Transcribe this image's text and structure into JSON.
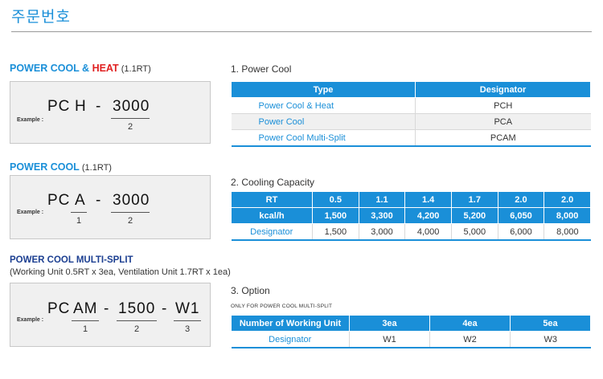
{
  "page_title": "주문번호",
  "sections": {
    "heat": {
      "title_prefix": "POWER COOL & ",
      "title_red": "HEAT",
      "title_note": " (1.1RT)",
      "example_label": "Example :",
      "code_parts": [
        "PC",
        "H",
        "-",
        "3000"
      ],
      "numbers": [
        "2"
      ]
    },
    "cool": {
      "title": "POWER COOL",
      "title_note": " (1.1RT)",
      "example_label": "Example :",
      "code_parts": [
        "PC",
        "A",
        "-",
        "3000"
      ],
      "numbers": [
        "1",
        "2"
      ]
    },
    "multi": {
      "title": "POWER COOL MULTI-SPLIT",
      "subtitle": "(Working Unit 0.5RT x 3ea, Ventilation Unit 1.7RT x 1ea)",
      "example_label": "Example :",
      "code_parts": [
        "PC",
        "AM",
        "-",
        "1500",
        "-",
        "W1"
      ],
      "numbers": [
        "1",
        "2",
        "3"
      ]
    }
  },
  "table1": {
    "title": "1. Power Cool",
    "headers": [
      "Type",
      "Designator"
    ],
    "rows": [
      [
        "Power Cool & Heat",
        "PCH"
      ],
      [
        "Power Cool",
        "PCA"
      ],
      [
        "Power Cool Multi-Split",
        "PCAM"
      ]
    ]
  },
  "table2": {
    "title": "2. Cooling Capacity",
    "header": [
      "RT",
      "0.5",
      "1.1",
      "1.4",
      "1.7",
      "2.0",
      "2.0"
    ],
    "kcal": [
      "kcal/h",
      "1,500",
      "3,300",
      "4,200",
      "5,200",
      "6,050",
      "8,000"
    ],
    "designator": [
      "Designator",
      "1,500",
      "3,000",
      "4,000",
      "5,000",
      "6,000",
      "8,000"
    ]
  },
  "table3": {
    "title": "3. Option",
    "note": "ONLY FOR POWER COOL MULTI-SPLIT",
    "headers": [
      "Number of Working Unit",
      "3ea",
      "4ea",
      "5ea"
    ],
    "row": [
      "Designator",
      "W1",
      "W2",
      "W3"
    ]
  },
  "colors": {
    "accent": "#1a8fd8",
    "red": "#e02020",
    "navy": "#1c3f91",
    "box_bg": "#f0f0f0"
  }
}
